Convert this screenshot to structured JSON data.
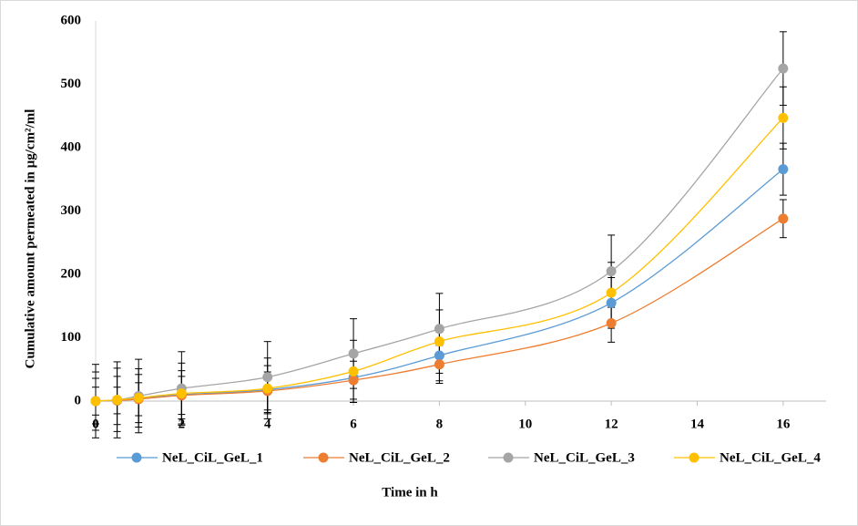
{
  "chart_data": {
    "type": "scatter-smooth",
    "x_label": "Time in h",
    "y_label": "Cumulative amount permeated in µg/cm²/ml",
    "x": [
      0,
      0.5,
      1,
      2,
      4,
      6,
      8,
      12,
      16
    ],
    "series": [
      {
        "name": "NeL_CiL_GeL_1",
        "color": "#5b9bd5",
        "values": [
          0,
          1,
          4,
          10,
          18,
          37,
          72,
          155,
          366
        ],
        "errors": [
          36,
          38,
          38,
          38,
          38,
          39,
          40,
          40,
          41
        ]
      },
      {
        "name": "NeL_CiL_GeL_2",
        "color": "#ed7d31",
        "values": [
          0,
          1,
          3,
          9,
          16,
          33,
          58,
          123,
          288
        ],
        "errors": [
          22,
          21,
          26,
          30,
          30,
          30,
          30,
          30,
          30
        ]
      },
      {
        "name": "NeL_CiL_GeL_3",
        "color": "#a5a5a5",
        "values": [
          0,
          2,
          8,
          20,
          38,
          75,
          114,
          205,
          525
        ],
        "errors": [
          58,
          60,
          58,
          58,
          56,
          55,
          56,
          57,
          58
        ]
      },
      {
        "name": "NeL_CiL_GeL_4",
        "color": "#ffc000",
        "values": [
          0,
          2,
          5,
          12,
          20,
          47,
          94,
          171,
          447
        ],
        "errors": [
          46,
          50,
          46,
          48,
          48,
          49,
          50,
          48,
          49
        ]
      }
    ],
    "xlim": [
      0,
      17
    ],
    "xticks": [
      0,
      2,
      4,
      6,
      8,
      10,
      12,
      14,
      16
    ],
    "ylim": [
      0,
      600
    ],
    "yticks": [
      0,
      100,
      200,
      300,
      400,
      500,
      600
    ],
    "grid": false,
    "legend": "bottom"
  }
}
